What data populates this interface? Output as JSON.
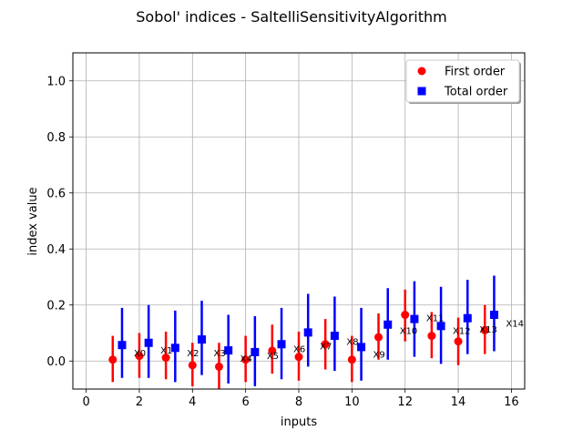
{
  "chart_data": {
    "type": "scatter",
    "title": "Sobol' indices - SaltelliSensitivityAlgorithm",
    "xlabel": "inputs",
    "ylabel": "index value",
    "xlim": [
      -0.5,
      16.5
    ],
    "ylim": [
      -0.1,
      1.1
    ],
    "xticks": [
      0,
      2,
      4,
      6,
      8,
      10,
      12,
      14,
      16
    ],
    "yticks": [
      0.0,
      0.2,
      0.4,
      0.6,
      0.8,
      1.0
    ],
    "xtick_labels": [
      "0",
      "2",
      "4",
      "6",
      "8",
      "10",
      "12",
      "14",
      "16"
    ],
    "ytick_labels": [
      "0.0",
      "0.2",
      "0.4",
      "0.6",
      "0.8",
      "1.0"
    ],
    "grid": true,
    "legend_position": "upper right",
    "series": [
      {
        "name": "First order",
        "marker": "circle",
        "color": "#ff0000",
        "x": [
          1,
          2,
          3,
          4,
          5,
          6,
          7,
          8,
          9,
          10,
          11,
          12,
          13,
          14,
          15
        ],
        "y": [
          0.005,
          0.018,
          0.012,
          -0.015,
          -0.02,
          0.005,
          0.037,
          0.015,
          0.06,
          0.005,
          0.085,
          0.165,
          0.09,
          0.07,
          0.11
        ],
        "lower": [
          -0.075,
          -0.06,
          -0.065,
          -0.09,
          -0.1,
          -0.075,
          -0.045,
          -0.07,
          -0.03,
          -0.075,
          0.005,
          0.07,
          0.01,
          -0.015,
          0.025
        ],
        "upper": [
          0.09,
          0.1,
          0.105,
          0.065,
          0.065,
          0.09,
          0.13,
          0.105,
          0.15,
          0.09,
          0.17,
          0.255,
          0.175,
          0.155,
          0.2
        ]
      },
      {
        "name": "Total order",
        "marker": "square",
        "color": "#0000ff",
        "x": [
          1.35,
          2.35,
          3.35,
          4.35,
          5.35,
          6.35,
          7.35,
          8.35,
          9.35,
          10.35,
          11.35,
          12.35,
          13.35,
          14.35,
          15.35
        ],
        "y": [
          0.057,
          0.065,
          0.047,
          0.077,
          0.038,
          0.032,
          0.06,
          0.102,
          0.09,
          0.05,
          0.13,
          0.15,
          0.125,
          0.153,
          0.165
        ],
        "lower": [
          -0.06,
          -0.06,
          -0.075,
          -0.05,
          -0.08,
          -0.09,
          -0.065,
          -0.02,
          -0.035,
          -0.07,
          0.005,
          0.015,
          -0.01,
          0.025,
          0.035
        ],
        "upper": [
          0.19,
          0.2,
          0.18,
          0.215,
          0.165,
          0.16,
          0.19,
          0.24,
          0.23,
          0.19,
          0.26,
          0.285,
          0.265,
          0.29,
          0.305
        ]
      }
    ],
    "annotations": [
      {
        "text": "X0",
        "x": 2.0,
        "y": 0.03
      },
      {
        "text": "X1",
        "x": 3.0,
        "y": 0.04
      },
      {
        "text": "X2",
        "x": 4.0,
        "y": 0.03
      },
      {
        "text": "X3",
        "x": 5.0,
        "y": 0.03
      },
      {
        "text": "X4",
        "x": 6.0,
        "y": 0.01
      },
      {
        "text": "X5",
        "x": 7.0,
        "y": 0.02
      },
      {
        "text": "X6",
        "x": 8.0,
        "y": 0.045
      },
      {
        "text": "X7",
        "x": 9.0,
        "y": 0.055
      },
      {
        "text": "X8",
        "x": 10.0,
        "y": 0.07
      },
      {
        "text": "X9",
        "x": 11.0,
        "y": 0.025
      },
      {
        "text": "X10",
        "x": 12.0,
        "y": 0.11
      },
      {
        "text": "X11",
        "x": 13.0,
        "y": 0.155
      },
      {
        "text": "X12",
        "x": 14.0,
        "y": 0.11
      },
      {
        "text": "X13",
        "x": 15.0,
        "y": 0.115
      },
      {
        "text": "X14",
        "x": 16.0,
        "y": 0.135
      }
    ]
  }
}
